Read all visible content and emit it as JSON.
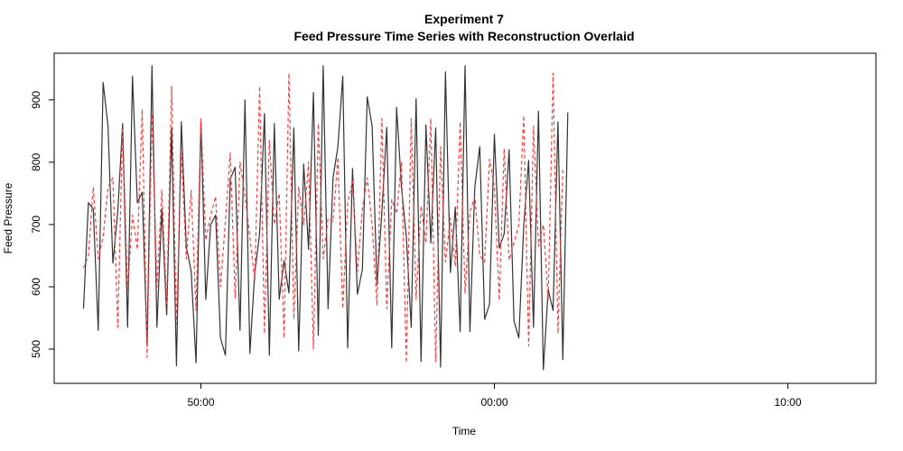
{
  "chart_data": {
    "type": "line",
    "title": "Experiment 7",
    "subtitle": "Feed Pressure Time Series with Reconstruction Overlaid",
    "xlabel": "Time",
    "ylabel": "Feed Pressure",
    "xlim": [
      0,
      168
    ],
    "ylim": [
      445,
      975
    ],
    "x_ticks": [
      {
        "value": 30,
        "label": "50:00"
      },
      {
        "value": 90,
        "label": "00:00"
      },
      {
        "value": 150,
        "label": "10:00"
      }
    ],
    "y_ticks": [
      500,
      600,
      700,
      800,
      900
    ],
    "grid": false,
    "series": [
      {
        "color": "#333333",
        "dash": "solid",
        "values": [
          565,
          735,
          725,
          530,
          928,
          858,
          638,
          720,
          862,
          535,
          938,
          735,
          752,
          505,
          955,
          535,
          725,
          555,
          855,
          473,
          865,
          665,
          625,
          478,
          865,
          580,
          700,
          715,
          518,
          490,
          773,
          792,
          530,
          900,
          493,
          622,
          685,
          878,
          490,
          862,
          580,
          642,
          590,
          855,
          497,
          797,
          660,
          912,
          522,
          955,
          565,
          775,
          825,
          938,
          502,
          790,
          588,
          628,
          905,
          858,
          603,
          720,
          856,
          502,
          888,
          760,
          680,
          535,
          902,
          480,
          860,
          670,
          855,
          471,
          945,
          623,
          728,
          528,
          955,
          528,
          760,
          825,
          548,
          572,
          845,
          662,
          685,
          820,
          545,
          518,
          698,
          803,
          535,
          882,
          467,
          595,
          562,
          865,
          483,
          880
        ]
      },
      {
        "color": "#ff3b3b",
        "dash": "dashed",
        "values": [
          630,
          650,
          760,
          645,
          680,
          760,
          775,
          535,
          855,
          595,
          715,
          660,
          885,
          487,
          878,
          600,
          755,
          570,
          922,
          540,
          815,
          645,
          755,
          562,
          870,
          675,
          715,
          745,
          600,
          705,
          815,
          582,
          800,
          745,
          680,
          610,
          922,
          525,
          835,
          700,
          750,
          518,
          943,
          548,
          760,
          700,
          800,
          500,
          862,
          645,
          710,
          705,
          808,
          565,
          735,
          770,
          625,
          725,
          775,
          700,
          570,
          870,
          565,
          740,
          718,
          800,
          478,
          870,
          580,
          730,
          670,
          870,
          480,
          825,
          640,
          710,
          633,
          865,
          590,
          720,
          745,
          650,
          640,
          805,
          760,
          578,
          822,
          643,
          670,
          700,
          875,
          505,
          858,
          665,
          700,
          580,
          943,
          525,
          790
        ]
      }
    ]
  }
}
